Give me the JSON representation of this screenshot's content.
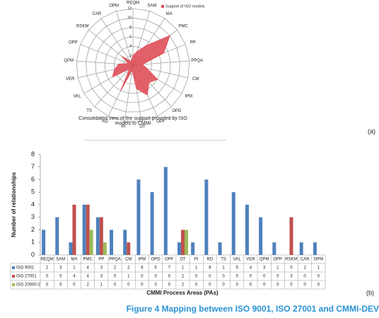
{
  "chart_data": [
    {
      "type": "radar",
      "label": "(a)",
      "title": "Consolidated view of the support provided by ISO models to CMMI",
      "categories": [
        "REQM",
        "SAM",
        "MA",
        "PMC",
        "PP",
        "PPQA",
        "CM",
        "IPM",
        "OPD",
        "OPF",
        "OT",
        "PI",
        "RD",
        "TS",
        "VAL",
        "VER",
        "QPM",
        "OPP",
        "RSKM",
        "CAR",
        "OPM"
      ],
      "series": [
        {
          "name": "Support of ISO models",
          "color": "#e0505a",
          "values": [
            2,
            3,
            5,
            10,
            7,
            2,
            3,
            6,
            5,
            7,
            5,
            1,
            6,
            1,
            5,
            4,
            3,
            1,
            3,
            1,
            1
          ]
        }
      ],
      "rlim": [
        0,
        12
      ],
      "rticks": [
        0,
        2,
        4,
        6,
        8,
        10,
        12
      ],
      "legend": "top-right"
    },
    {
      "type": "bar",
      "label": "(b)",
      "xlabel": "CMMI Process Areas (PAs)",
      "ylabel": "Number of relationships",
      "categories": [
        "REQM",
        "SAM",
        "MA",
        "PMC",
        "PP",
        "PPQA",
        "CM",
        "IPM",
        "OPD",
        "OPF",
        "OT",
        "PI",
        "RD",
        "TS",
        "VAL",
        "VER",
        "QPM",
        "OPP",
        "RSKM",
        "CAR",
        "OPM"
      ],
      "series": [
        {
          "name": "ISO 9001",
          "color": "#4f81bd",
          "values": [
            2,
            3,
            1,
            4,
            3,
            2,
            2,
            6,
            5,
            7,
            1,
            1,
            6,
            1,
            5,
            4,
            3,
            1,
            0,
            1,
            1
          ]
        },
        {
          "name": "ISO 27001",
          "color": "#c0504d",
          "values": [
            0,
            0,
            4,
            4,
            3,
            0,
            1,
            0,
            0,
            0,
            2,
            0,
            0,
            0,
            0,
            0,
            0,
            0,
            3,
            0,
            0
          ]
        },
        {
          "name": "ISO 20000-2",
          "color": "#9bbb59",
          "values": [
            0,
            0,
            0,
            2,
            1,
            0,
            0,
            0,
            0,
            0,
            2,
            0,
            0,
            0,
            0,
            0,
            0,
            0,
            0,
            0,
            0
          ]
        }
      ],
      "ylim": [
        0,
        8
      ],
      "yticks": [
        0,
        1,
        2,
        3,
        4,
        5,
        6,
        7,
        8
      ],
      "data_table": true
    }
  ],
  "caption": "Figure 4 Mapping between ISO 9001, ISO 27001 and CMMI-DEV"
}
